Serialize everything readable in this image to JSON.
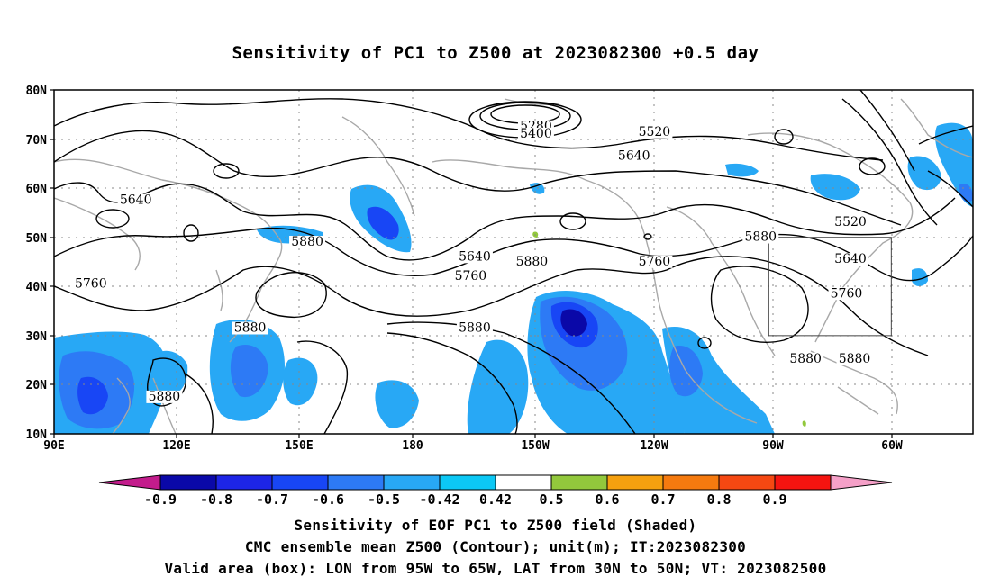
{
  "title": "Sensitivity of PC1 to Z500 at 2023082300 +0.5 day",
  "lat_labels": [
    "80N",
    "70N",
    "60N",
    "50N",
    "40N",
    "30N",
    "20N",
    "10N"
  ],
  "lon_labels": [
    "90E",
    "120E",
    "150E",
    "180",
    "150W",
    "120W",
    "90W",
    "60W"
  ],
  "contour_labels": [
    {
      "text": "5280",
      "lon": -152,
      "lat": 71.8
    },
    {
      "text": "5400",
      "lon": -152,
      "lat": 70.3
    },
    {
      "text": "5520",
      "lon": -123,
      "lat": 70.7
    },
    {
      "text": "5640",
      "lon": -128,
      "lat": 65.8
    },
    {
      "text": "5640",
      "lon": 110,
      "lat": 56.8
    },
    {
      "text": "5640",
      "lon": -167,
      "lat": 45.3
    },
    {
      "text": "5760",
      "lon": -168,
      "lat": 41.3
    },
    {
      "text": "5760",
      "lon": -123,
      "lat": 44.3
    },
    {
      "text": "5760",
      "lon": 99,
      "lat": 39.8
    },
    {
      "text": "5760",
      "lon": -76,
      "lat": 37.8
    },
    {
      "text": "5880",
      "lon": 152,
      "lat": 48.3
    },
    {
      "text": "5880",
      "lon": -153,
      "lat": 44.3
    },
    {
      "text": "5880",
      "lon": -97,
      "lat": 49.3
    },
    {
      "text": "5880",
      "lon": 138,
      "lat": 30.8
    },
    {
      "text": "5880",
      "lon": -167,
      "lat": 30.8
    },
    {
      "text": "5880",
      "lon": 117,
      "lat": 16.8
    },
    {
      "text": "5880",
      "lon": -86,
      "lat": 24.5
    },
    {
      "text": "5880",
      "lon": -74,
      "lat": 24.5
    },
    {
      "text": "5520",
      "lon": -75,
      "lat": 52.3
    },
    {
      "text": "5640",
      "lon": -75,
      "lat": 44.8
    }
  ],
  "valid_box": {
    "lon_min": -95,
    "lon_max": -65,
    "lat_min": 30,
    "lat_max": 50
  },
  "colorbar": {
    "labels": [
      "-0.9",
      "-0.8",
      "-0.7",
      "-0.6",
      "-0.5",
      "-0.42",
      "0.42",
      "0.5",
      "0.6",
      "0.7",
      "0.8",
      "0.9"
    ],
    "colors": [
      "#0a08a8",
      "#1d25e6",
      "#1846f5",
      "#2d7af5",
      "#28a8f5",
      "#0cc8f5",
      "#ffffff",
      "#92c83c",
      "#f5a00f",
      "#f57a0f",
      "#f54812",
      "#f51410"
    ],
    "low_end_color": "#c31c8c",
    "high_end_color": "#f5a0c8"
  },
  "footer": {
    "line1": "Sensitivity of EOF PC1 to Z500 field (Shaded)",
    "line2": "CMC ensemble mean Z500 (Contour); unit(m); IT:2023082300",
    "line3": "Valid area (box): LON from 95W to 65W, LAT from 30N to 50N; VT: 2023082500"
  }
}
